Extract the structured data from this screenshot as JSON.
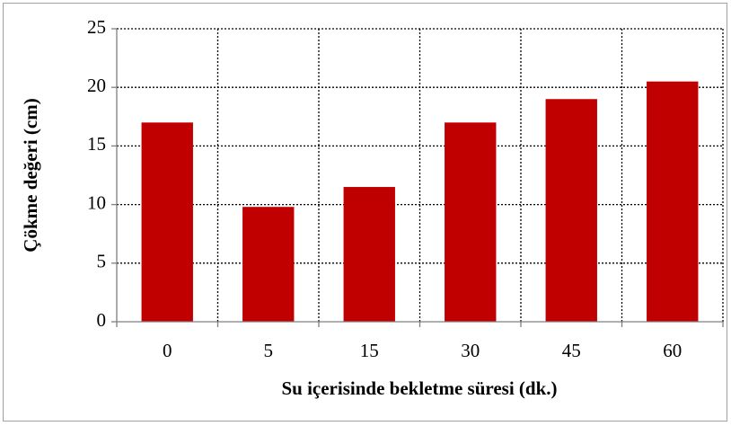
{
  "chart_data": {
    "type": "bar",
    "x_label": "Su içerisinde bekletme süresi (dk.)",
    "y_label": "Çökme değeri (cm)",
    "categories": [
      "0",
      "5",
      "15",
      "30",
      "45",
      "60"
    ],
    "values": [
      17,
      9.8,
      11.5,
      17,
      19,
      20.5
    ],
    "color": "#c00000",
    "ylim": [
      0,
      25
    ],
    "yticks": [
      0,
      5,
      10,
      15,
      20,
      25
    ],
    "grid": true
  }
}
